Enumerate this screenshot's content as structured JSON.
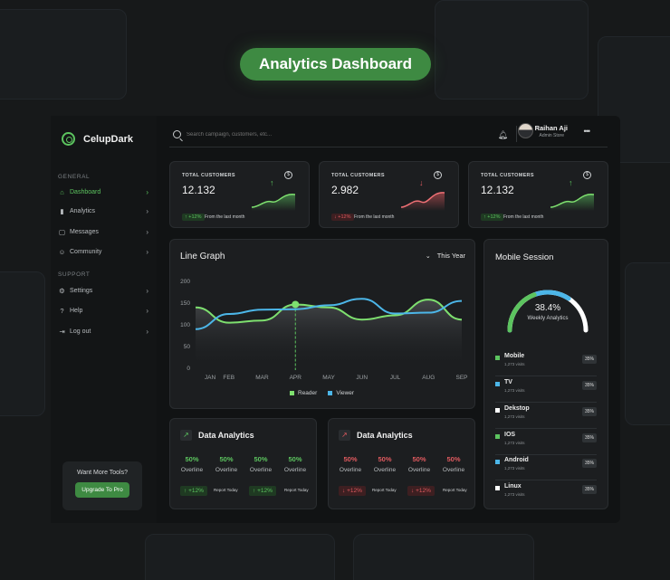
{
  "banner": {
    "title": "Analytics Dashboard"
  },
  "brand": {
    "name": "CelupDark"
  },
  "sidebar": {
    "general_label": "GENERAL",
    "support_label": "SUPPORT",
    "items": [
      {
        "label": "Dashboard",
        "icon": "home-icon",
        "active": true
      },
      {
        "label": "Analytics",
        "icon": "bar-chart-icon"
      },
      {
        "label": "Messages",
        "icon": "message-icon"
      },
      {
        "label": "Community",
        "icon": "people-icon"
      }
    ],
    "support_items": [
      {
        "label": "Settings",
        "icon": "gear-icon"
      },
      {
        "label": "Help",
        "icon": "help-icon"
      },
      {
        "label": "Log out",
        "icon": "logout-icon"
      }
    ],
    "promo": {
      "text": "Want More Tools?",
      "button": "Upgrade To Pro"
    }
  },
  "topbar": {
    "search_placeholder": "Search campaign, customers, etc...",
    "user_name": "Raihan Aji",
    "user_role": "Admin Store"
  },
  "stats": [
    {
      "label": "TOTAL CUSTOMERS",
      "value": "12.132",
      "change": "+12%",
      "note": "From the last month",
      "trend": "up",
      "color": "#5cc45f"
    },
    {
      "label": "TOTAL CUSTOMERS",
      "value": "2.982",
      "change": "+12%",
      "note": "From the last month",
      "trend": "down",
      "color": "#e05a5f"
    },
    {
      "label": "TOTAL CUSTOMERS",
      "value": "12.132",
      "change": "+12%",
      "note": "From the last month",
      "trend": "up",
      "color": "#5cc45f"
    }
  ],
  "line_graph": {
    "title": "Line Graph",
    "period": "This Year"
  },
  "chart_data": {
    "type": "line",
    "categories": [
      "JAN",
      "FEB",
      "MAR",
      "APR",
      "MAY",
      "JUN",
      "JUL",
      "AUG",
      "SEP"
    ],
    "ylim": [
      0,
      200
    ],
    "yticks": [
      0,
      50,
      100,
      150,
      200
    ],
    "series": [
      {
        "name": "Reader",
        "color": "#7ee06f",
        "values": [
          140,
          105,
          110,
          147,
          140,
          112,
          122,
          158,
          112
        ]
      },
      {
        "name": "Viewer",
        "color": "#4cb6e8",
        "values": [
          90,
          125,
          135,
          136,
          145,
          160,
          126,
          128,
          155
        ]
      }
    ],
    "highlight_category": "APR",
    "grid": false,
    "legend": "bottom"
  },
  "data_analytics": [
    {
      "title": "Data Analytics",
      "color": "#5cc45f",
      "metrics": [
        {
          "value": "50%",
          "label": "Overline"
        },
        {
          "value": "50%",
          "label": "Overline"
        },
        {
          "value": "50%",
          "label": "Overline"
        },
        {
          "value": "50%",
          "label": "Overline"
        }
      ],
      "reports": [
        {
          "change": "+12%",
          "note": "Report Today"
        },
        {
          "change": "+12%",
          "note": "Report Today"
        }
      ]
    },
    {
      "title": "Data Analytics",
      "color": "#e05a5f",
      "metrics": [
        {
          "value": "50%",
          "label": "Overline"
        },
        {
          "value": "50%",
          "label": "Overline"
        },
        {
          "value": "50%",
          "label": "Overline"
        },
        {
          "value": "50%",
          "label": "Overline"
        }
      ],
      "reports": [
        {
          "change": "+12%",
          "note": "Report Today"
        },
        {
          "change": "+12%",
          "note": "Report Today"
        }
      ]
    }
  ],
  "mobile_session": {
    "title": "Mobile Session",
    "percent": "38.4%",
    "percent_value": 38.4,
    "subtitle": "Weekly Analytics",
    "os": [
      {
        "name": "Mobile",
        "visits": "1,273 visits",
        "pct": "35%",
        "color": "#5cc45f"
      },
      {
        "name": "TV",
        "visits": "1,273 visits",
        "pct": "35%",
        "color": "#4cb6e8"
      },
      {
        "name": "Dekstop",
        "visits": "1,273 visits",
        "pct": "35%",
        "color": "#ffffff"
      },
      {
        "name": "IOS",
        "visits": "1,273 visits",
        "pct": "35%",
        "color": "#5cc45f"
      },
      {
        "name": "Android",
        "visits": "1,273 visits",
        "pct": "35%",
        "color": "#4cb6e8"
      },
      {
        "name": "Linux",
        "visits": "1,273 visits",
        "pct": "35%",
        "color": "#ffffff"
      }
    ]
  }
}
